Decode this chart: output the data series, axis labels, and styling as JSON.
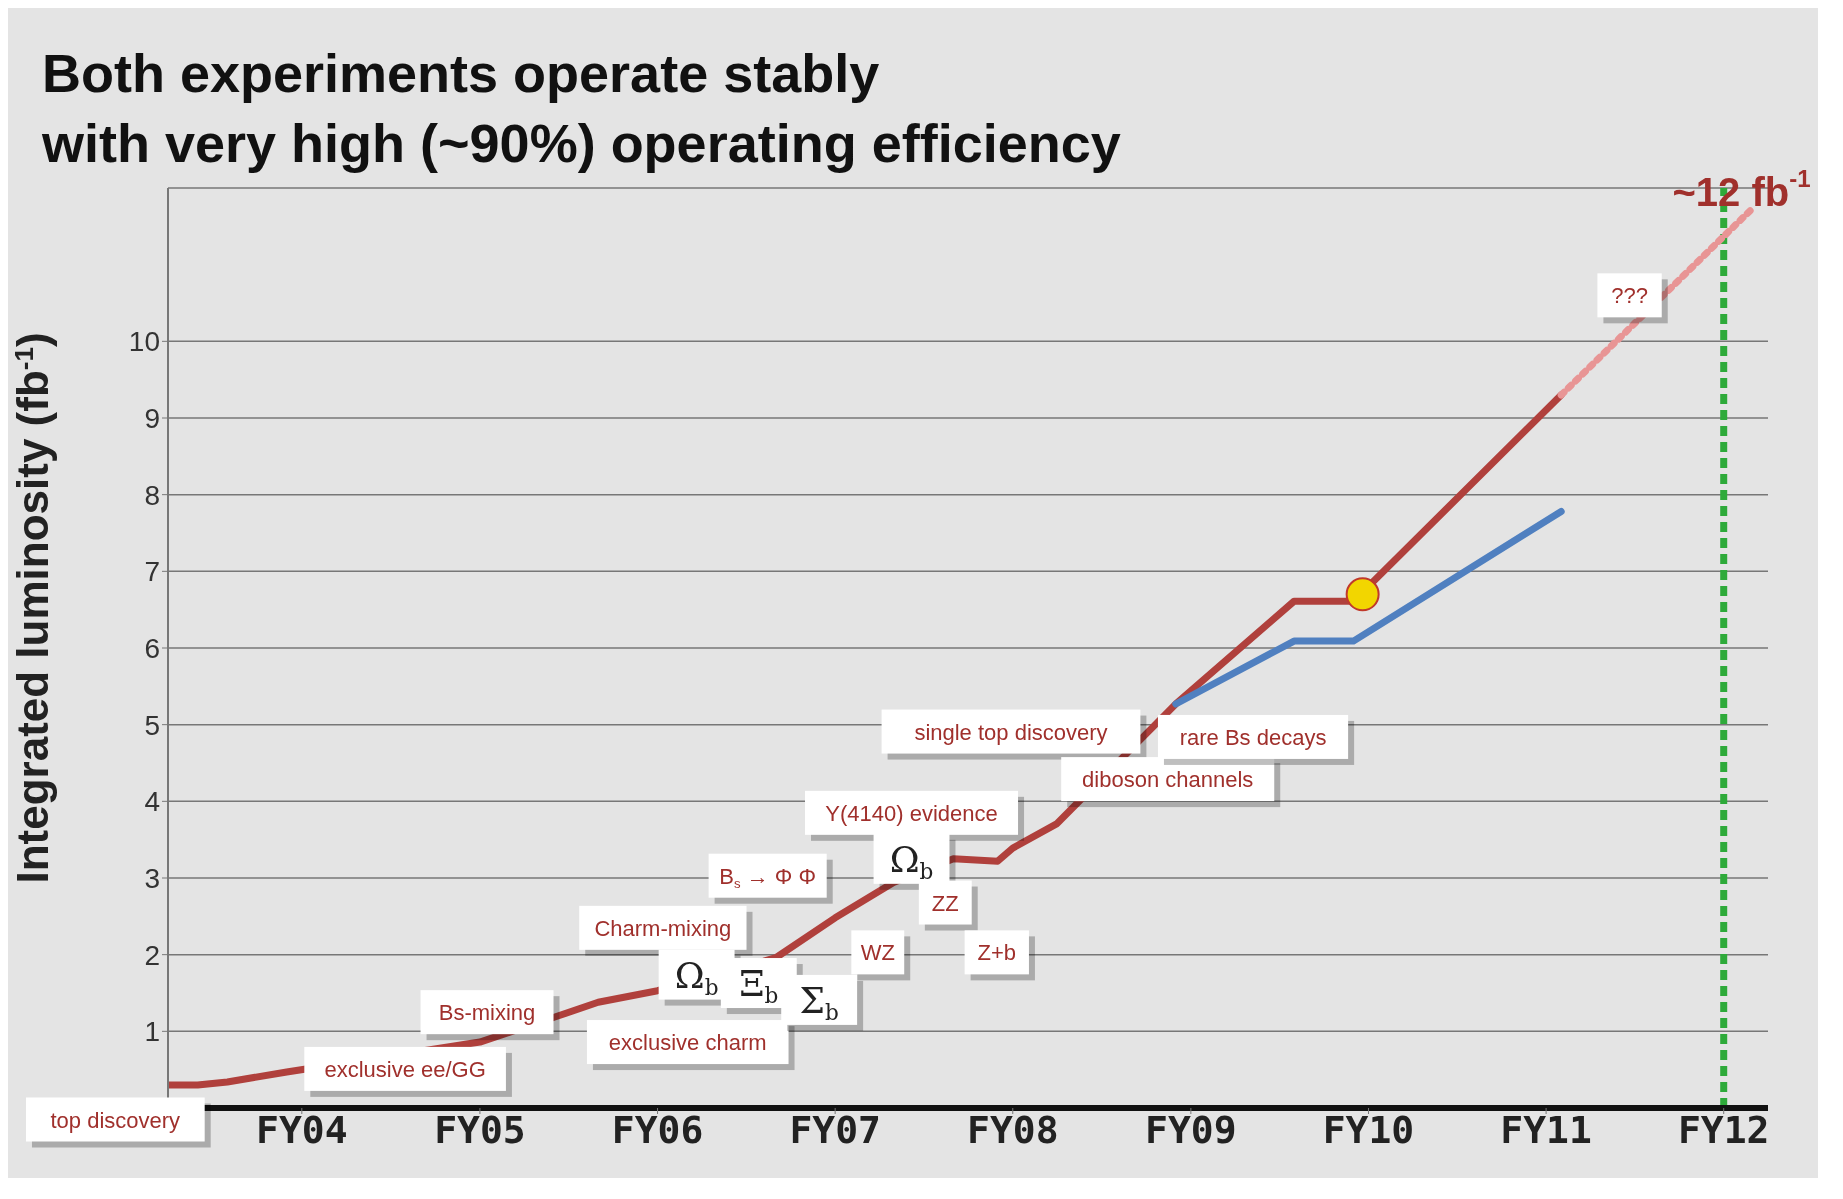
{
  "chart_data": {
    "type": "line",
    "title": "Both experiments operate stably\nwith very high (~90%) operating efficiency",
    "ylabel": "Integrated luminosity (fb$^{-1}$)",
    "xlim": [
      "2003-04",
      "2012-04"
    ],
    "ylim": [
      0,
      12
    ],
    "xticks": [
      {
        "value": "2004",
        "label": "FY04"
      },
      {
        "value": "2005",
        "label": "FY05"
      },
      {
        "value": "2006",
        "label": "FY06"
      },
      {
        "value": "2007",
        "label": "FY07"
      },
      {
        "value": "2008",
        "label": "FY08"
      },
      {
        "value": "2009",
        "label": "FY09"
      },
      {
        "value": "2010",
        "label": "FY10"
      },
      {
        "value": "2011",
        "label": "FY11"
      },
      {
        "value": "2012",
        "label": "FY12"
      }
    ],
    "yticks": [
      1,
      2,
      3,
      4,
      5,
      6,
      7,
      8,
      9,
      10
    ],
    "grid": "y",
    "legend": false,
    "marker": "none",
    "series": [
      {
        "color": "#b0403c",
        "line_style": "solid",
        "x": [
          "2003-04",
          "2003-06",
          "2003-08",
          "2003-12",
          "2005-01",
          "2005-06",
          "2005-09",
          "2006-01",
          "2006-02",
          "2006-09",
          "2007-01",
          "2007-05",
          "2007-06",
          "2007-09",
          "2007-12",
          "2008-01",
          "2008-04",
          "2008-07",
          "2008-10",
          "2008-12",
          "2009-08",
          "2009-12",
          "2010-01",
          "2011-02"
        ],
        "values": [
          0.3,
          0.3,
          0.34,
          0.47,
          0.86,
          1.18,
          1.38,
          1.53,
          null,
          1.96,
          2.48,
          2.94,
          null,
          3.25,
          3.22,
          3.39,
          3.71,
          null,
          4.88,
          5.27,
          6.61,
          6.61,
          null,
          9.3
        ]
      },
      {
        "color": "#5080c0",
        "line_style": "solid",
        "x": [
          "2008-12",
          "2009-08",
          "2009-12",
          "2011-02"
        ],
        "values": [
          5.27,
          6.09,
          6.09,
          7.78
        ]
      },
      {
        "color": "#e89595",
        "line_style": "dotted",
        "x": [
          "2011-02",
          "2012-03"
        ],
        "values": [
          9.3,
          11.74
        ]
      },
      {
        "type": "scatter",
        "color": "#f2d600",
        "marker": "circle",
        "x": [
          "2009-12-20"
        ],
        "values": [
          6.7
        ]
      }
    ],
    "ref_lines": [
      {
        "axis": "x",
        "value": "2012-01",
        "color": "#2eaa3a",
        "line_style": "dashed"
      }
    ],
    "annotations": [
      "top discovery",
      "exclusive ee/GG",
      "Bs-mixing",
      "exclusive charm",
      "Charm-mixing",
      "Ω$_{b}$",
      "Ξ$_{b}$",
      "Σ$_{b}$",
      "B$_{s}$ → Φ Φ",
      "WZ",
      "Y(4140) evidence",
      "Ω$_{b}$",
      "ZZ",
      "Z+b",
      "single top discovery",
      "diboson channels",
      "rare Bs decays",
      "???",
      "~12 fb$^{-1}$"
    ]
  }
}
